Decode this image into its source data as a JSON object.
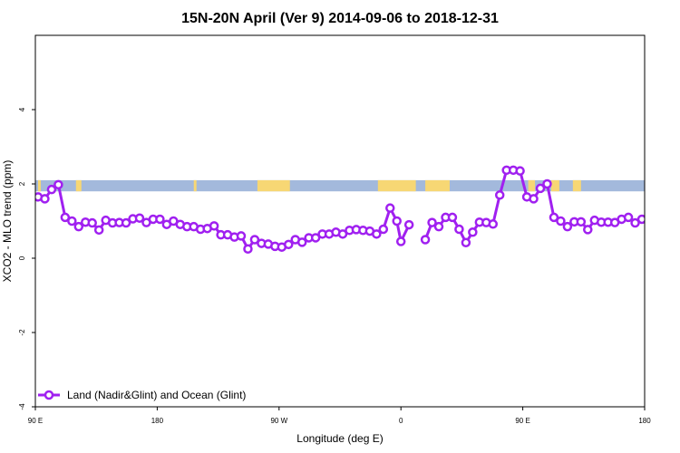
{
  "chart_data": {
    "type": "line",
    "title": "15N-20N April (Ver 9)   2014-09-06 to 2018-12-31",
    "xlabel": "Longitude (deg E)",
    "ylabel": "XCO2 - MLO trend (ppm)",
    "xlim": [
      90,
      540
    ],
    "ylim": [
      -4,
      6
    ],
    "x_ticks": [
      {
        "value": 90,
        "label": "90 E"
      },
      {
        "value": 180,
        "label": "180"
      },
      {
        "value": 270,
        "label": "90 W"
      },
      {
        "value": 360,
        "label": "0"
      },
      {
        "value": 450,
        "label": "90 E"
      },
      {
        "value": 540,
        "label": "180"
      }
    ],
    "y_ticks": [
      {
        "value": -4,
        "label": "-4"
      },
      {
        "value": -2,
        "label": "-2"
      },
      {
        "value": 0,
        "label": "0"
      },
      {
        "value": 2,
        "label": "2"
      },
      {
        "value": 4,
        "label": "4"
      }
    ],
    "grid": false,
    "legend_position": "bottom-left",
    "land_ocean_band": {
      "y_range": [
        1.8,
        2.1
      ],
      "ocean_color": "#a3b9dc",
      "land_color": "#f7d774",
      "land_segments": [
        [
          92,
          94
        ],
        [
          120,
          124
        ],
        [
          207,
          209
        ],
        [
          254,
          278
        ],
        [
          343,
          371
        ],
        [
          378,
          396
        ],
        [
          454,
          459
        ],
        [
          471,
          477
        ],
        [
          487,
          493
        ]
      ]
    },
    "series": [
      {
        "name": "Land (Nadir&Glint) and Ocean (Glint)",
        "color": "#a020f0",
        "segments": [
          [
            [
              92,
              1.65
            ],
            [
              97,
              1.6
            ],
            [
              102,
              1.85
            ],
            [
              107,
              1.98
            ],
            [
              112,
              1.1
            ],
            [
              117,
              1.0
            ],
            [
              122,
              0.85
            ],
            [
              127,
              0.97
            ],
            [
              132,
              0.95
            ],
            [
              137,
              0.76
            ],
            [
              142,
              1.02
            ],
            [
              147,
              0.95
            ],
            [
              152,
              0.96
            ],
            [
              157,
              0.95
            ],
            [
              162,
              1.06
            ],
            [
              167,
              1.08
            ],
            [
              172,
              0.96
            ],
            [
              177,
              1.05
            ],
            [
              182,
              1.05
            ],
            [
              187,
              0.91
            ],
            [
              192,
              1.0
            ],
            [
              197,
              0.91
            ],
            [
              202,
              0.85
            ],
            [
              207,
              0.85
            ],
            [
              212,
              0.78
            ],
            [
              217,
              0.8
            ],
            [
              222,
              0.87
            ],
            [
              227,
              0.63
            ],
            [
              232,
              0.63
            ],
            [
              237,
              0.57
            ],
            [
              242,
              0.6
            ],
            [
              247,
              0.25
            ],
            [
              252,
              0.5
            ],
            [
              257,
              0.4
            ],
            [
              262,
              0.38
            ],
            [
              267,
              0.32
            ],
            [
              272,
              0.3
            ],
            [
              277,
              0.37
            ],
            [
              282,
              0.5
            ],
            [
              287,
              0.43
            ],
            [
              292,
              0.55
            ],
            [
              297,
              0.55
            ],
            [
              302,
              0.65
            ],
            [
              307,
              0.65
            ],
            [
              312,
              0.7
            ],
            [
              317,
              0.65
            ],
            [
              322,
              0.75
            ],
            [
              327,
              0.77
            ],
            [
              332,
              0.75
            ],
            [
              337,
              0.73
            ],
            [
              342,
              0.65
            ],
            [
              347,
              0.78
            ],
            [
              352,
              1.35
            ],
            [
              357,
              1.0
            ],
            [
              360,
              0.45
            ],
            [
              366,
              0.9
            ]
          ],
          [
            [
              378,
              0.5
            ],
            [
              383,
              0.96
            ],
            [
              388,
              0.85
            ],
            [
              393,
              1.1
            ],
            [
              398,
              1.1
            ],
            [
              403,
              0.78
            ],
            [
              408,
              0.42
            ],
            [
              413,
              0.7
            ],
            [
              418,
              0.97
            ],
            [
              423,
              0.96
            ],
            [
              428,
              0.92
            ],
            [
              433,
              1.7
            ],
            [
              438,
              2.37
            ],
            [
              443,
              2.37
            ],
            [
              448,
              2.35
            ],
            [
              453,
              1.65
            ],
            [
              458,
              1.6
            ],
            [
              463,
              1.88
            ],
            [
              468,
              2.0
            ],
            [
              473,
              1.1
            ],
            [
              478,
              1.0
            ],
            [
              483,
              0.85
            ],
            [
              488,
              0.98
            ],
            [
              493,
              0.98
            ],
            [
              498,
              0.77
            ],
            [
              503,
              1.02
            ],
            [
              508,
              0.97
            ],
            [
              513,
              0.97
            ],
            [
              518,
              0.96
            ],
            [
              523,
              1.05
            ],
            [
              528,
              1.1
            ],
            [
              533,
              0.95
            ],
            [
              538,
              1.05
            ]
          ]
        ]
      }
    ]
  }
}
